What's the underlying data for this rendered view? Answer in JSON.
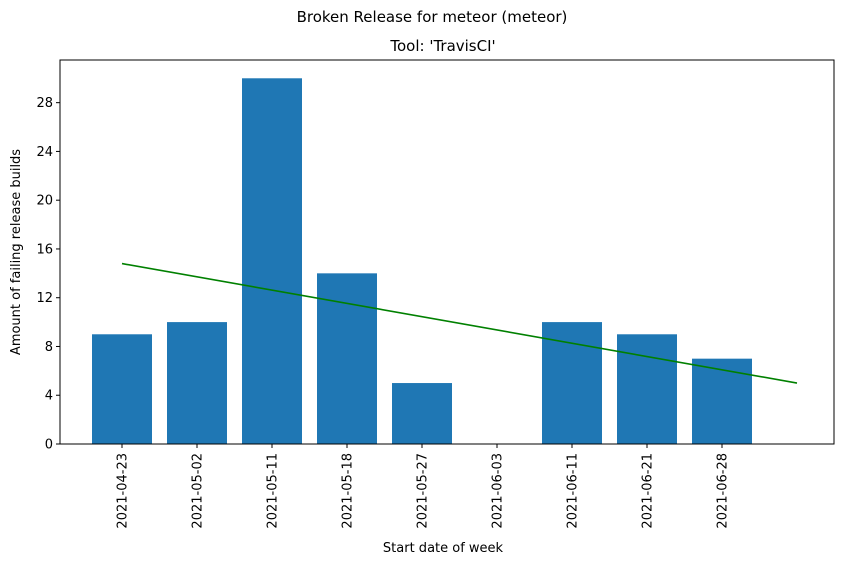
{
  "figure": {
    "suptitle": "Broken Release for meteor (meteor)"
  },
  "chart_data": {
    "type": "bar",
    "title": "Tool: 'TravisCI'",
    "xlabel": "Start date of week",
    "ylabel": "Amount of failing release builds",
    "categories": [
      "2021-04-23",
      "2021-05-02",
      "2021-05-11",
      "2021-05-18",
      "2021-05-27",
      "2021-06-03",
      "2021-06-11",
      "2021-06-21",
      "2021-06-28"
    ],
    "values": [
      9,
      10,
      30,
      14,
      5,
      0,
      10,
      9,
      7
    ],
    "yticks": [
      0,
      4,
      8,
      12,
      16,
      20,
      24,
      28
    ],
    "ylim": [
      0,
      31.5
    ],
    "bar_color": "#1f77b4",
    "trend_line": {
      "color": "#008000",
      "start": {
        "category_index": 0,
        "value": 14.8
      },
      "end": {
        "category_index": 9,
        "value": 5.0
      }
    },
    "grid": false,
    "legend": "none"
  }
}
